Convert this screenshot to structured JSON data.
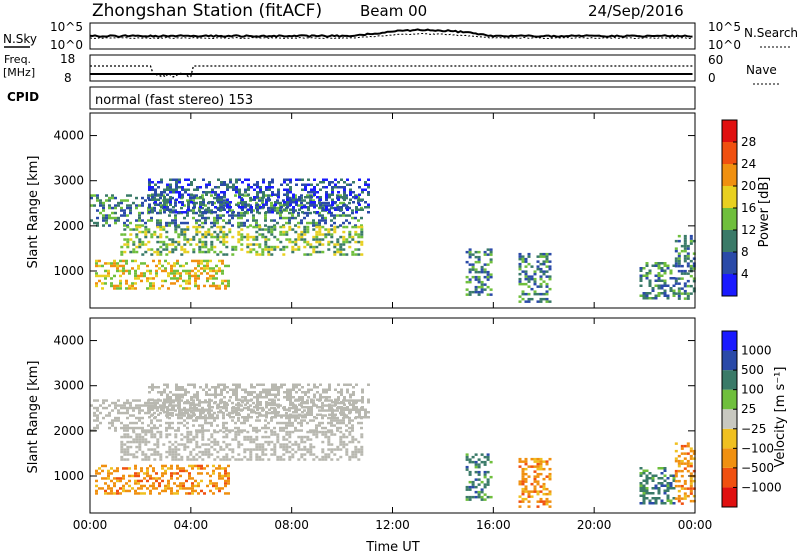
{
  "header": {
    "station_title": "Zhongshan Station (fitACF)",
    "beam": "Beam 00",
    "date": "24/Sep/2016"
  },
  "strips": {
    "nsky_label": "N.Sky",
    "nsky_ticks": [
      "10^5",
      "10^0"
    ],
    "nsearch_ticks": [
      "10^5",
      "10^0"
    ],
    "nsearch_label": "N.Search",
    "freq_label": "Freq.",
    "freq_unit": "[MHz]",
    "freq_ticks": [
      "18",
      "8"
    ],
    "nave_ticks": [
      "60",
      "0"
    ],
    "nave_label": "Nave",
    "cpid_label": "CPID",
    "cpid_text": "normal (fast stereo) 153"
  },
  "colors": {
    "power_scale": [
      "#1a1aff",
      "#2a4aa8",
      "#3a7a68",
      "#6fbf3c",
      "#e8d020",
      "#f09010",
      "#f05010",
      "#e01010"
    ],
    "velocity_scale": [
      "#e01010",
      "#f05010",
      "#f09010",
      "#f0c020",
      "#c8c8c0",
      "#6fbf3c",
      "#3a7a68",
      "#2a4aa8",
      "#1a1aff"
    ],
    "ground_scatter": "#b8b8b0"
  },
  "chart_data": [
    {
      "type": "heatmap",
      "title": "Power",
      "xlabel": "",
      "ylabel": "Slant Range [km]",
      "colorbar_label": "Power [dB]",
      "x_range_hours": [
        0,
        24
      ],
      "ylim": [
        180,
        4500
      ],
      "x_ticks": [
        "00:00",
        "04:00",
        "08:00",
        "12:00",
        "16:00",
        "20:00",
        "00:00"
      ],
      "y_ticks": [
        1000,
        2000,
        3000,
        4000
      ],
      "colorbar_ticks": [
        4,
        8,
        12,
        16,
        20,
        24,
        28
      ],
      "colorbar_range": [
        0,
        32
      ],
      "echo_regions": [
        {
          "t_start": 0.0,
          "t_end": 10.8,
          "range_top": 2700,
          "range_bottom": 2000,
          "description": "descending band",
          "power_db": 12
        },
        {
          "t_start": 1.2,
          "t_end": 10.8,
          "range_top": 2000,
          "range_bottom": 1350,
          "power_db": 14
        },
        {
          "t_start": 0.2,
          "t_end": 5.5,
          "range_top": 1250,
          "range_bottom": 600,
          "power_db": 18
        },
        {
          "t_start": 2.3,
          "t_end": 11.0,
          "range_top": 3050,
          "range_bottom": 2300,
          "power_db": 8
        },
        {
          "t_start": 14.9,
          "t_end": 15.9,
          "range_top": 1500,
          "range_bottom": 500,
          "power_db": 10
        },
        {
          "t_start": 17.0,
          "t_end": 18.2,
          "range_top": 1400,
          "range_bottom": 300,
          "power_db": 10
        },
        {
          "t_start": 21.8,
          "t_end": 23.2,
          "range_top": 1200,
          "range_bottom": 400,
          "power_db": 12
        },
        {
          "t_start": 23.2,
          "t_end": 24.0,
          "range_top": 1800,
          "range_bottom": 400,
          "power_db": 10
        }
      ]
    },
    {
      "type": "heatmap",
      "title": "Velocity",
      "xlabel": "Time UT",
      "ylabel": "Slant Range [km]",
      "colorbar_label": "Velocity [m s⁻¹]",
      "x_range_hours": [
        0,
        24
      ],
      "ylim": [
        180,
        4500
      ],
      "x_ticks": [
        "00:00",
        "04:00",
        "08:00",
        "12:00",
        "16:00",
        "20:00",
        "00:00"
      ],
      "y_ticks": [
        1000,
        2000,
        3000,
        4000
      ],
      "colorbar_ticks": [
        "1000",
        "500",
        "100",
        "25",
        "−25",
        "−100",
        "−500",
        "−1000"
      ],
      "echo_regions": [
        {
          "t_start": 0.0,
          "t_end": 10.8,
          "range_top": 2700,
          "range_bottom": 2000,
          "velocity": 0
        },
        {
          "t_start": 1.2,
          "t_end": 10.8,
          "range_top": 2000,
          "range_bottom": 1350,
          "velocity": 0
        },
        {
          "t_start": 0.2,
          "t_end": 5.5,
          "range_top": 1250,
          "range_bottom": 600,
          "velocity": -150
        },
        {
          "t_start": 2.3,
          "t_end": 11.0,
          "range_top": 3050,
          "range_bottom": 2300,
          "velocity": 0
        },
        {
          "t_start": 14.9,
          "t_end": 15.9,
          "range_top": 1500,
          "range_bottom": 500,
          "velocity": 300
        },
        {
          "t_start": 17.0,
          "t_end": 18.2,
          "range_top": 1400,
          "range_bottom": 300,
          "velocity": -150
        },
        {
          "t_start": 21.8,
          "t_end": 23.2,
          "range_top": 1200,
          "range_bottom": 400,
          "velocity": 200
        },
        {
          "t_start": 23.2,
          "t_end": 24.0,
          "range_top": 1800,
          "range_bottom": 400,
          "velocity": -120
        }
      ]
    }
  ]
}
